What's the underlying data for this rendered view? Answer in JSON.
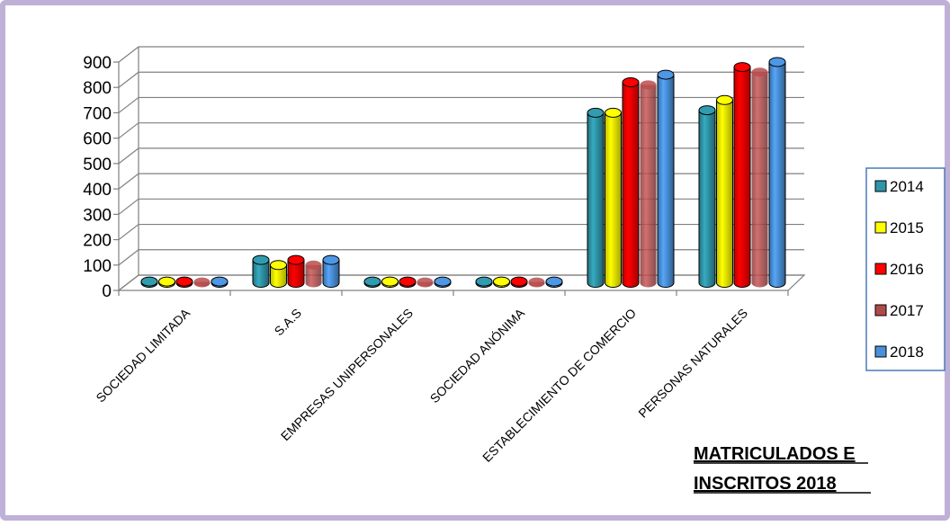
{
  "chart_data": {
    "type": "bar",
    "title_lines": [
      "MATRICULADOS E",
      "INSCRITOS 2018"
    ],
    "categories": [
      "SOCIEDAD LIMITADA",
      "S.A.S",
      "EMPRESAS UNIPERSONALES",
      "SOCIEDAD ANÓNIMA",
      "ESTABLECIMIENTO DE COMERCIO",
      "PERSONAS NATURALES"
    ],
    "ylim": [
      0,
      900
    ],
    "yticks": [
      "0",
      "100",
      "200",
      "300",
      "400",
      "500",
      "600",
      "700",
      "800",
      "900"
    ],
    "grid": true,
    "legend_position": "right",
    "series": [
      {
        "name": "2014",
        "color": "#2f95a8",
        "values": [
          5,
          90,
          5,
          5,
          670,
          680
        ]
      },
      {
        "name": "2015",
        "color": "#ffff00",
        "values": [
          5,
          70,
          5,
          5,
          670,
          720
        ]
      },
      {
        "name": "2016",
        "color": "#ff0000",
        "values": [
          5,
          90,
          5,
          5,
          790,
          850
        ]
      },
      {
        "name": "2017",
        "color": "#b04a4a",
        "values": [
          3,
          70,
          3,
          3,
          780,
          830
        ]
      },
      {
        "name": "2018",
        "color": "#4a90d9",
        "values": [
          5,
          90,
          5,
          5,
          820,
          870
        ]
      }
    ]
  }
}
